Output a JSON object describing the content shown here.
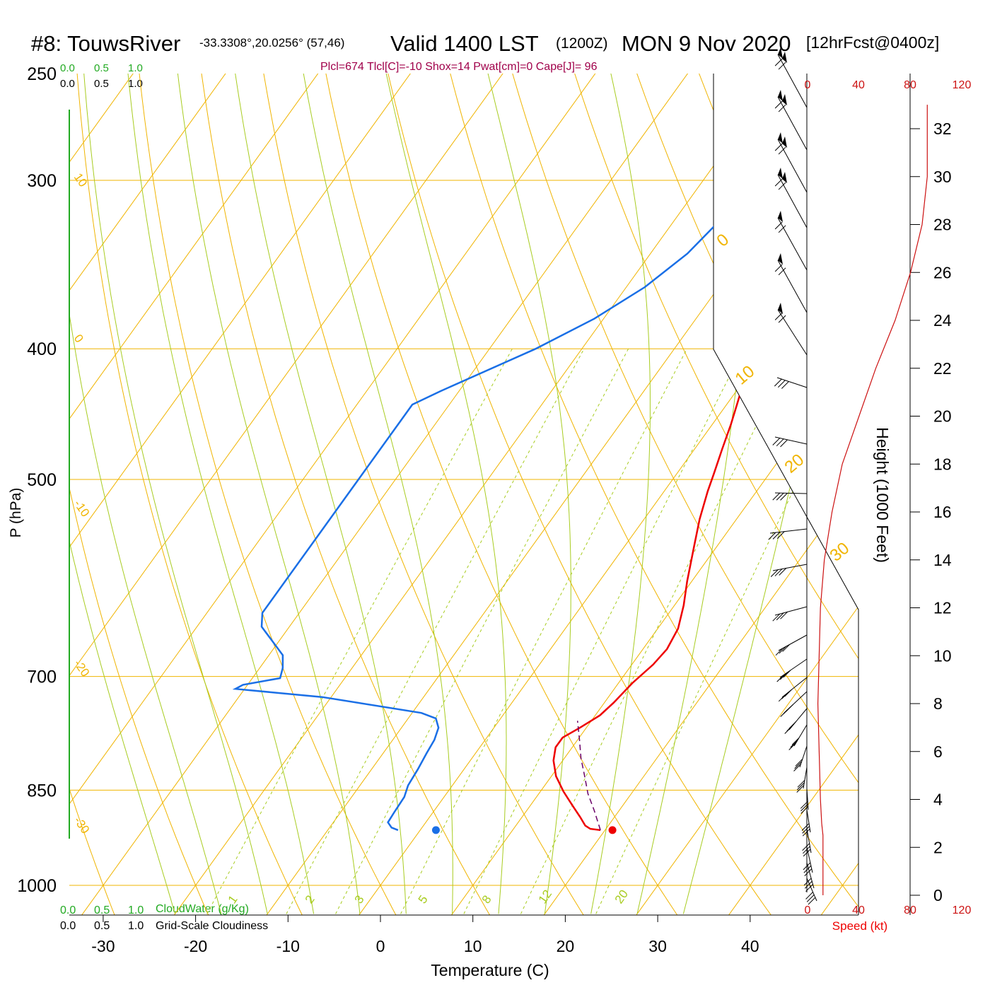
{
  "header": {
    "station": "#8: TouwsRiver",
    "coords": "-33.3308°,20.0256° (57,46)",
    "valid": "Valid 1400 LST",
    "zulu": "(1200Z)",
    "date": "MON 9 Nov 2020",
    "fcst": "[12hrFcst@0400z]",
    "indices": "Plcl=674 Tlcl[C]=-10 Shox=14 Pwat[cm]=0 Cape[J]= 96"
  },
  "colors": {
    "temperature": "#ee0000",
    "dewpoint": "#1a6fe6",
    "parcel": "#6a0068",
    "isobar": "#f0b400",
    "isotherm": "#f0b400",
    "dry_adiabat": "#f0b400",
    "moist_adiabat": "#a8cc20",
    "mixing_ratio": "#a8cc20",
    "cloud_water": "#22aa22",
    "wind_speed": "#cc1111",
    "barb": "#000000"
  },
  "cloud_scale": {
    "top_green": [
      "0.0",
      "0.5",
      "1.0"
    ],
    "top_black": [
      "0.0",
      "0.5",
      "1.0"
    ],
    "bottom_green": [
      "0.0",
      "0.5",
      "1.0"
    ],
    "bottom_green_label": "CloudWater (g/Kg)",
    "bottom_black": [
      "0.0",
      "0.5",
      "1.0"
    ],
    "bottom_black_label": "Grid-Scale Cloudiness"
  },
  "chart_data": {
    "type": "line",
    "title": "Skew-T",
    "xlabel": "Temperature (C)",
    "ylabel": "P (hPa)",
    "right_label": "Height (1000 Feet)",
    "speed_label": "Speed (kt)",
    "xlim": [
      -34,
      44
    ],
    "ylim": [
      1030,
      250
    ],
    "x_ticks": [
      -30,
      -20,
      -10,
      0,
      10,
      20,
      30,
      40
    ],
    "x_tick_labels": [
      "-30",
      "-20",
      "-10",
      "0",
      "10",
      "20",
      "30",
      "40"
    ],
    "pressure_ticks": [
      250,
      300,
      400,
      500,
      700,
      850,
      1000
    ],
    "pressure_tick_labels": [
      "250",
      "300",
      "400",
      "500",
      "700",
      "850",
      "1000"
    ],
    "height_ticks": [
      0,
      2,
      4,
      6,
      8,
      10,
      12,
      14,
      16,
      18,
      20,
      22,
      24,
      26,
      28,
      30,
      32
    ],
    "height_tick_labels": [
      "0",
      "2",
      "4",
      "6",
      "8",
      "10",
      "12",
      "14",
      "16",
      "18",
      "20",
      "22",
      "24",
      "26",
      "28",
      "30",
      "32"
    ],
    "speed_ticks": [
      0,
      40,
      80,
      120
    ],
    "speed_tick_labels": [
      "0",
      "40",
      "80",
      "120"
    ],
    "mixing_ratio_labels": [
      "1",
      "2",
      "3",
      "5",
      "8",
      "12",
      "20"
    ],
    "isotherm_labels": [
      "10",
      "0",
      "-10",
      "-20",
      "-30"
    ],
    "theta_labels": [
      "0",
      "10",
      "20",
      "30"
    ],
    "series": [
      {
        "name": "Temperature",
        "points": [
          [
            19.5,
            910
          ],
          [
            18.3,
            908
          ],
          [
            17.5,
            903
          ],
          [
            16.3,
            890
          ],
          [
            14.5,
            872
          ],
          [
            12.5,
            852
          ],
          [
            10.5,
            830
          ],
          [
            9.0,
            808
          ],
          [
            8.2,
            790
          ],
          [
            8.2,
            777
          ],
          [
            9.3,
            764
          ],
          [
            10.5,
            748
          ],
          [
            11.0,
            732
          ],
          [
            11.5,
            708
          ],
          [
            12.3,
            686
          ],
          [
            12.6,
            668
          ],
          [
            12.2,
            645
          ],
          [
            11.0,
            620
          ],
          [
            9.5,
            595
          ],
          [
            7.5,
            560
          ],
          [
            6.0,
            535
          ],
          [
            4.7,
            510
          ],
          [
            4.0,
            495
          ],
          [
            3.0,
            475
          ],
          [
            2.0,
            455
          ],
          [
            1.0,
            438
          ],
          [
            0.0,
            422
          ],
          [
            -1.2,
            406
          ],
          [
            -2.3,
            390
          ],
          [
            -3.8,
            373
          ],
          [
            -5.8,
            352
          ],
          [
            -7.2,
            337
          ],
          [
            -9.0,
            319
          ],
          [
            -10.6,
            304
          ],
          [
            -12.2,
            290
          ],
          [
            -13.8,
            279
          ],
          [
            -15.5,
            268
          ],
          [
            -16.5,
            262
          ]
        ]
      },
      {
        "name": "Dewpoint",
        "points": [
          [
            -2.4,
            910
          ],
          [
            -3.3,
            906
          ],
          [
            -4.1,
            898
          ],
          [
            -4.2,
            883
          ],
          [
            -4.3,
            860
          ],
          [
            -4.8,
            843
          ],
          [
            -5.0,
            820
          ],
          [
            -5.3,
            798
          ],
          [
            -5.5,
            780
          ],
          [
            -6.0,
            764
          ],
          [
            -7.0,
            752
          ],
          [
            -9.0,
            745
          ],
          [
            -21.0,
            725
          ],
          [
            -31.0,
            715
          ],
          [
            -30.5,
            710
          ],
          [
            -27.0,
            702
          ],
          [
            -27.5,
            690
          ],
          [
            -28.5,
            675
          ],
          [
            -31.0,
            657
          ],
          [
            -33.0,
            643
          ],
          [
            -34.0,
            628
          ],
          [
            -34.0,
            500
          ],
          [
            -34.0,
            440
          ],
          [
            -32.0,
            430
          ],
          [
            -25.0,
            400
          ],
          [
            -21.0,
            380
          ],
          [
            -18.0,
            360
          ],
          [
            -16.0,
            340
          ],
          [
            -15.0,
            320
          ],
          [
            -15.0,
            300
          ],
          [
            -15.5,
            285
          ],
          [
            -16.5,
            268
          ],
          [
            -17.5,
            262
          ]
        ]
      },
      {
        "name": "Parcel",
        "points": [
          [
            19.5,
            910
          ],
          [
            17.3,
            880
          ],
          [
            15.3,
            855
          ],
          [
            13.6,
            830
          ],
          [
            11.8,
            805
          ],
          [
            10.2,
            780
          ],
          [
            8.5,
            755
          ]
        ]
      }
    ],
    "surface_temperature": [
      20.8,
      910
    ],
    "surface_dewpoint": [
      1.7,
      910
    ],
    "wind_speed_profile": [
      [
        12,
        0
      ],
      [
        12,
        2.5
      ],
      [
        11,
        3
      ],
      [
        10,
        4
      ],
      [
        9,
        6
      ],
      [
        8,
        8
      ],
      [
        9,
        10
      ],
      [
        10,
        12
      ],
      [
        13,
        14
      ],
      [
        19,
        16
      ],
      [
        27,
        18
      ],
      [
        40,
        20
      ],
      [
        53,
        22
      ],
      [
        68,
        24
      ],
      [
        80,
        26
      ],
      [
        89,
        28
      ],
      [
        93,
        30
      ],
      [
        93,
        33
      ]
    ]
  }
}
